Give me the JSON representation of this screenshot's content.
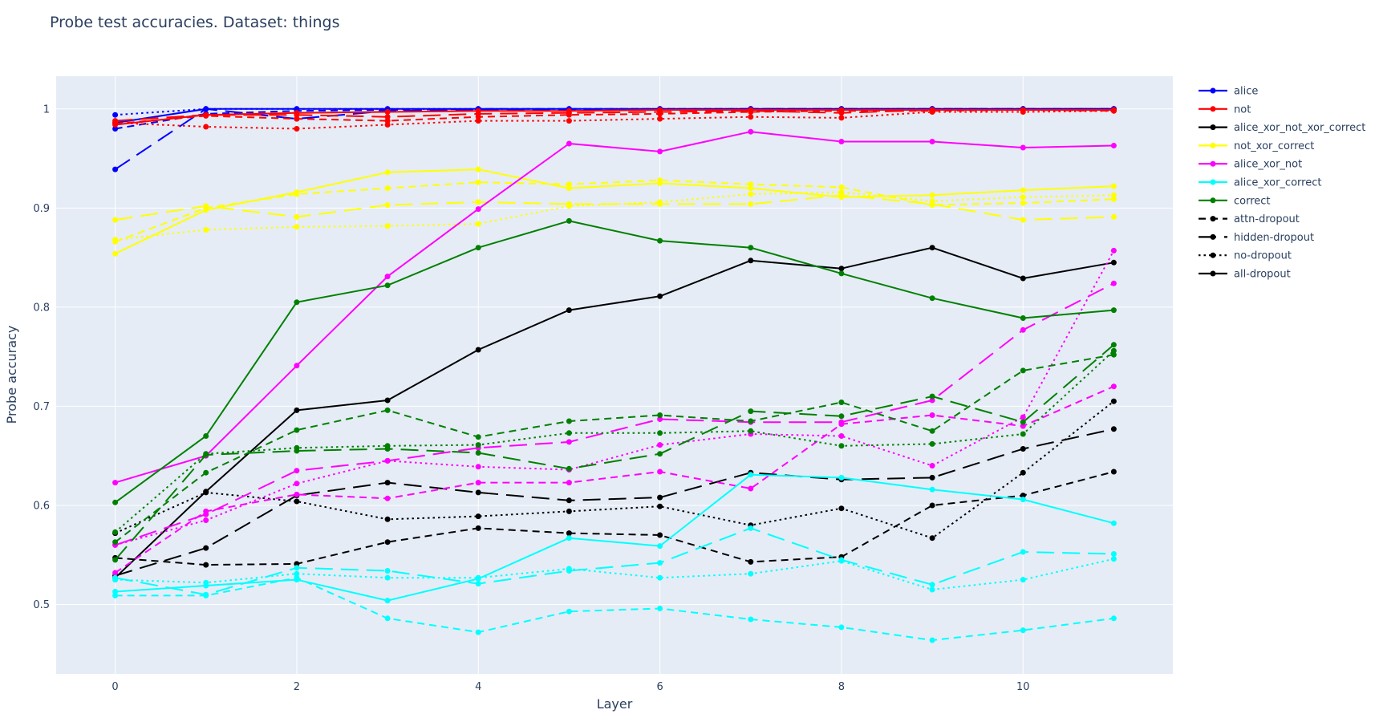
{
  "chart_data": {
    "type": "line",
    "title": "Probe test accuracies. Dataset: things",
    "xlabel": "Layer",
    "ylabel": "Probe accuracy",
    "xlim": [
      -0.65,
      11.65
    ],
    "ylim": [
      0.43,
      1.033
    ],
    "x": [
      0,
      1,
      2,
      3,
      4,
      5,
      6,
      7,
      8,
      9,
      10,
      11
    ],
    "x_ticks": [
      0,
      2,
      4,
      6,
      8,
      10
    ],
    "x_tick_labels": [
      "0",
      "2",
      "4",
      "6",
      "8",
      "10"
    ],
    "y_ticks": [
      0.5,
      0.6,
      0.7,
      0.8,
      0.9,
      1
    ],
    "y_tick_labels": [
      "0.5",
      "0.6",
      "0.7",
      "0.8",
      "0.9",
      "1"
    ],
    "grid": true,
    "background": "#E5ECF6",
    "legend_position": "right",
    "legend": [
      {
        "label": "alice",
        "color": "#0000ff",
        "dash": "solid"
      },
      {
        "label": "not",
        "color": "#ff0000",
        "dash": "solid"
      },
      {
        "label": "alice_xor_not_xor_correct",
        "color": "#000000",
        "dash": "solid"
      },
      {
        "label": "not_xor_correct",
        "color": "#ffff00",
        "dash": "solid"
      },
      {
        "label": "alice_xor_not",
        "color": "#ff00ff",
        "dash": "solid"
      },
      {
        "label": "alice_xor_correct",
        "color": "#00ffff",
        "dash": "solid"
      },
      {
        "label": "correct",
        "color": "#008000",
        "dash": "solid"
      },
      {
        "label": "attn-dropout",
        "color": "#000000",
        "dash": "dash"
      },
      {
        "label": "hidden-dropout",
        "color": "#000000",
        "dash": "longdash"
      },
      {
        "label": "no-dropout",
        "color": "#000000",
        "dash": "dot"
      },
      {
        "label": "all-dropout",
        "color": "#000000",
        "dash": "solid"
      }
    ],
    "series": [
      {
        "color": "#0000ff",
        "dash": "solid",
        "values": [
          0.986,
          1.0,
          1.0,
          1.0,
          1.0,
          1.0,
          1.0,
          1.0,
          1.0,
          1.0,
          1.0,
          1.0
        ]
      },
      {
        "color": "#0000ff",
        "dash": "dash",
        "values": [
          0.98,
          0.995,
          0.998,
          0.999,
          1.0,
          1.0,
          1.0,
          1.0,
          1.0,
          1.0,
          1.0,
          1.0
        ]
      },
      {
        "color": "#0000ff",
        "dash": "longdash",
        "values": [
          0.939,
          1.0,
          0.99,
          0.998,
          0.999,
          0.999,
          0.999,
          1.0,
          1.0,
          1.0,
          1.0,
          1.0
        ]
      },
      {
        "color": "#0000ff",
        "dash": "dot",
        "values": [
          0.994,
          1.0,
          1.0,
          1.0,
          1.0,
          1.0,
          1.0,
          1.0,
          1.0,
          1.0,
          1.0,
          1.0
        ]
      },
      {
        "color": "#ff0000",
        "dash": "solid",
        "values": [
          0.984,
          0.994,
          0.996,
          0.997,
          0.998,
          0.998,
          0.999,
          0.999,
          0.999,
          0.999,
          0.999,
          0.999
        ]
      },
      {
        "color": "#ff0000",
        "dash": "dash",
        "values": [
          0.985,
          0.993,
          0.99,
          0.988,
          0.992,
          0.994,
          0.995,
          0.997,
          0.998,
          0.998,
          0.999,
          0.998
        ]
      },
      {
        "color": "#ff0000",
        "dash": "longdash",
        "values": [
          0.988,
          0.994,
          0.994,
          0.992,
          0.995,
          0.996,
          0.997,
          0.998,
          0.996,
          0.999,
          0.999,
          0.999
        ]
      },
      {
        "color": "#ff0000",
        "dash": "dot",
        "values": [
          0.986,
          0.982,
          0.98,
          0.984,
          0.988,
          0.988,
          0.99,
          0.992,
          0.991,
          0.997,
          0.997,
          0.998
        ]
      },
      {
        "color": "#000000",
        "dash": "solid",
        "values": [
          0.527,
          0.614,
          0.696,
          0.706,
          0.757,
          0.797,
          0.811,
          0.847,
          0.839,
          0.86,
          0.829,
          0.845
        ]
      },
      {
        "color": "#000000",
        "dash": "dash",
        "values": [
          0.547,
          0.54,
          0.541,
          0.563,
          0.577,
          0.572,
          0.57,
          0.543,
          0.548,
          0.6,
          0.61,
          0.634
        ]
      },
      {
        "color": "#000000",
        "dash": "longdash",
        "values": [
          0.529,
          0.557,
          0.61,
          0.623,
          0.613,
          0.605,
          0.608,
          0.633,
          0.626,
          0.628,
          0.657,
          0.677
        ]
      },
      {
        "color": "#000000",
        "dash": "dot",
        "values": [
          0.572,
          0.613,
          0.604,
          0.586,
          0.589,
          0.594,
          0.599,
          0.58,
          0.597,
          0.567,
          0.633,
          0.705
        ]
      },
      {
        "color": "#ffff00",
        "dash": "solid",
        "values": [
          0.854,
          0.898,
          0.916,
          0.936,
          0.939,
          0.92,
          0.925,
          0.92,
          0.911,
          0.913,
          0.918,
          0.922
        ]
      },
      {
        "color": "#ffff00",
        "dash": "dash",
        "values": [
          0.866,
          0.9,
          0.914,
          0.92,
          0.926,
          0.924,
          0.928,
          0.924,
          0.921,
          0.903,
          0.905,
          0.909
        ]
      },
      {
        "color": "#ffff00",
        "dash": "longdash",
        "values": [
          0.888,
          0.902,
          0.891,
          0.903,
          0.906,
          0.904,
          0.904,
          0.904,
          0.913,
          0.904,
          0.888,
          0.891
        ]
      },
      {
        "color": "#ffff00",
        "dash": "dot",
        "values": [
          0.868,
          0.878,
          0.881,
          0.882,
          0.884,
          0.902,
          0.906,
          0.914,
          0.916,
          0.907,
          0.911,
          0.913
        ]
      },
      {
        "color": "#ff00ff",
        "dash": "solid",
        "values": [
          0.623,
          0.65,
          0.741,
          0.831,
          0.899,
          0.965,
          0.957,
          0.977,
          0.967,
          0.967,
          0.961,
          0.963
        ]
      },
      {
        "color": "#ff00ff",
        "dash": "dash",
        "values": [
          0.532,
          0.594,
          0.611,
          0.607,
          0.623,
          0.623,
          0.634,
          0.617,
          0.682,
          0.691,
          0.68,
          0.72
        ]
      },
      {
        "color": "#ff00ff",
        "dash": "longdash",
        "values": [
          0.56,
          0.591,
          0.635,
          0.645,
          0.658,
          0.664,
          0.687,
          0.684,
          0.684,
          0.706,
          0.777,
          0.824
        ]
      },
      {
        "color": "#ff00ff",
        "dash": "dot",
        "values": [
          0.56,
          0.585,
          0.622,
          0.645,
          0.639,
          0.636,
          0.661,
          0.672,
          0.67,
          0.64,
          0.689,
          0.857
        ]
      },
      {
        "color": "#00ffff",
        "dash": "solid",
        "values": [
          0.513,
          0.519,
          0.525,
          0.504,
          0.526,
          0.567,
          0.559,
          0.631,
          0.628,
          0.616,
          0.606,
          0.582
        ]
      },
      {
        "color": "#00ffff",
        "dash": "dash",
        "values": [
          0.509,
          0.509,
          0.527,
          0.486,
          0.472,
          0.493,
          0.496,
          0.485,
          0.477,
          0.464,
          0.474,
          0.486
        ]
      },
      {
        "color": "#00ffff",
        "dash": "longdash",
        "values": [
          0.527,
          0.51,
          0.537,
          0.534,
          0.521,
          0.534,
          0.542,
          0.577,
          0.545,
          0.52,
          0.553,
          0.551
        ]
      },
      {
        "color": "#00ffff",
        "dash": "dot",
        "values": [
          0.525,
          0.522,
          0.531,
          0.527,
          0.527,
          0.536,
          0.527,
          0.531,
          0.544,
          0.515,
          0.525,
          0.546
        ]
      },
      {
        "color": "#008000",
        "dash": "solid",
        "values": [
          0.603,
          0.67,
          0.805,
          0.822,
          0.86,
          0.887,
          0.867,
          0.86,
          0.834,
          0.809,
          0.789,
          0.797
        ]
      },
      {
        "color": "#008000",
        "dash": "dash",
        "values": [
          0.563,
          0.633,
          0.676,
          0.696,
          0.669,
          0.685,
          0.691,
          0.685,
          0.704,
          0.675,
          0.736,
          0.752
        ]
      },
      {
        "color": "#008000",
        "dash": "longdash",
        "values": [
          0.545,
          0.651,
          0.655,
          0.657,
          0.653,
          0.637,
          0.652,
          0.695,
          0.69,
          0.71,
          0.684,
          0.762
        ]
      },
      {
        "color": "#008000",
        "dash": "dot",
        "values": [
          0.573,
          0.652,
          0.658,
          0.66,
          0.661,
          0.673,
          0.673,
          0.675,
          0.66,
          0.662,
          0.672,
          0.756
        ]
      }
    ]
  }
}
